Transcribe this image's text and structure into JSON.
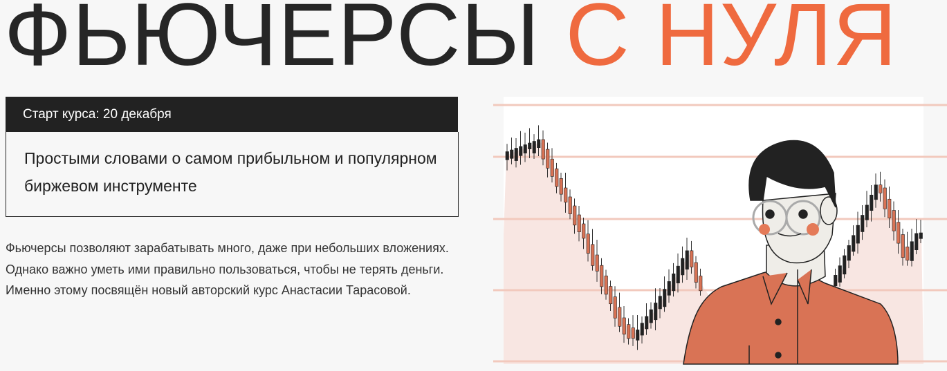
{
  "hero": {
    "title_main": "ФЬЮЧЕРСЫ",
    "title_accent": "С НУЛЯ",
    "accent_color": "#ef6a3f"
  },
  "course": {
    "start_label": "Старт курса: 20 декабря",
    "lead": "Простыми словами о самом прибыльном и популярном биржевом инструменте",
    "description": "Фьючерсы позволяют зарабатывать много, даже при небольших вложениях. Однако важно уметь ими правильно пользоваться, чтобы не терять деньги. Именно этому посвящён новый авторский курс Анастасии Тарасовой."
  },
  "illustration": {
    "icon": "trader-with-candlestick-chart-illustration"
  }
}
